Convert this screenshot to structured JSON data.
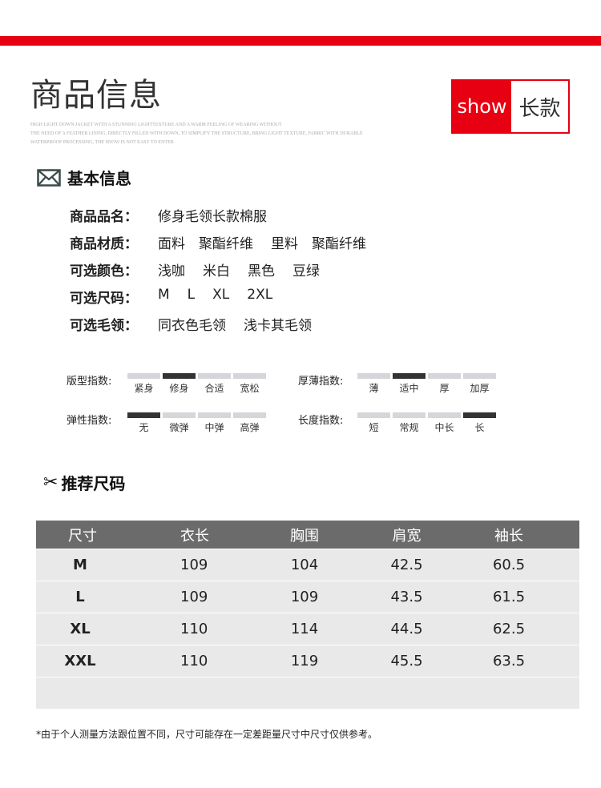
{
  "header": {
    "title": "商品信息",
    "english": [
      "HIGH LIGHT DOWN JACKET WITH A STUNNING LIGHTTEXTURE AND A WARM FEELING OF WEARING WITHOUT",
      "THE NEED OF A FEATHER LINING, DIRECTLY FILLED WITH DOWN, TO SIMPLIFY THE STRUCTURE, BRING LIGHT TEXTURE, FABRIC WITH DURABLE",
      "WATERPROOF PROCESSING, THE SNOW IS NOT EASY TO ENTER"
    ],
    "show": "show",
    "style": "长款",
    "accent": "#e60012"
  },
  "basic": {
    "title": "基本信息",
    "icon": "envelope-icon",
    "rows": [
      {
        "key": "商品品名：",
        "values": [
          "修身毛领长款棉服"
        ]
      },
      {
        "key": "商品材质：",
        "values": [
          "面料　聚酯纤维",
          "里料　聚酯纤维"
        ]
      },
      {
        "key": "可选颜色：",
        "values": [
          "浅咖",
          "米白",
          "黑色",
          "豆绿"
        ]
      },
      {
        "key": "可选尺码：",
        "values": [
          "M",
          "L",
          "XL",
          "2XL"
        ]
      },
      {
        "key": "可选毛领：",
        "values": [
          "同衣色毛领",
          "浅卡其毛领"
        ]
      }
    ]
  },
  "indices": [
    {
      "label": "版型指数:",
      "options": [
        "紧身",
        "修身",
        "合适",
        "宽松"
      ],
      "selected": 1
    },
    {
      "label": "厚薄指数:",
      "options": [
        "薄",
        "适中",
        "厚",
        "加厚"
      ],
      "selected": 1
    },
    {
      "label": "弹性指数:",
      "options": [
        "无",
        "微弹",
        "中弹",
        "高弹"
      ],
      "selected": 0
    },
    {
      "label": "长度指数:",
      "options": [
        "短",
        "常规",
        "中长",
        "长"
      ],
      "selected": 3
    }
  ],
  "size": {
    "title": "推荐尺码",
    "icon": "scissors-icon",
    "headers": [
      "尺寸",
      "衣长",
      "胸围",
      "肩宽",
      "袖长"
    ],
    "rows": [
      [
        "M",
        "109",
        "104",
        "42.5",
        "60.5"
      ],
      [
        "L",
        "109",
        "109",
        "43.5",
        "61.5"
      ],
      [
        "XL",
        "110",
        "114",
        "44.5",
        "62.5"
      ],
      [
        "XXL",
        "110",
        "119",
        "45.5",
        "63.5"
      ]
    ]
  },
  "note": "*由于个人测量方法跟位置不同，尺寸可能存在一定差距量尺寸中尺寸仅供参考。"
}
